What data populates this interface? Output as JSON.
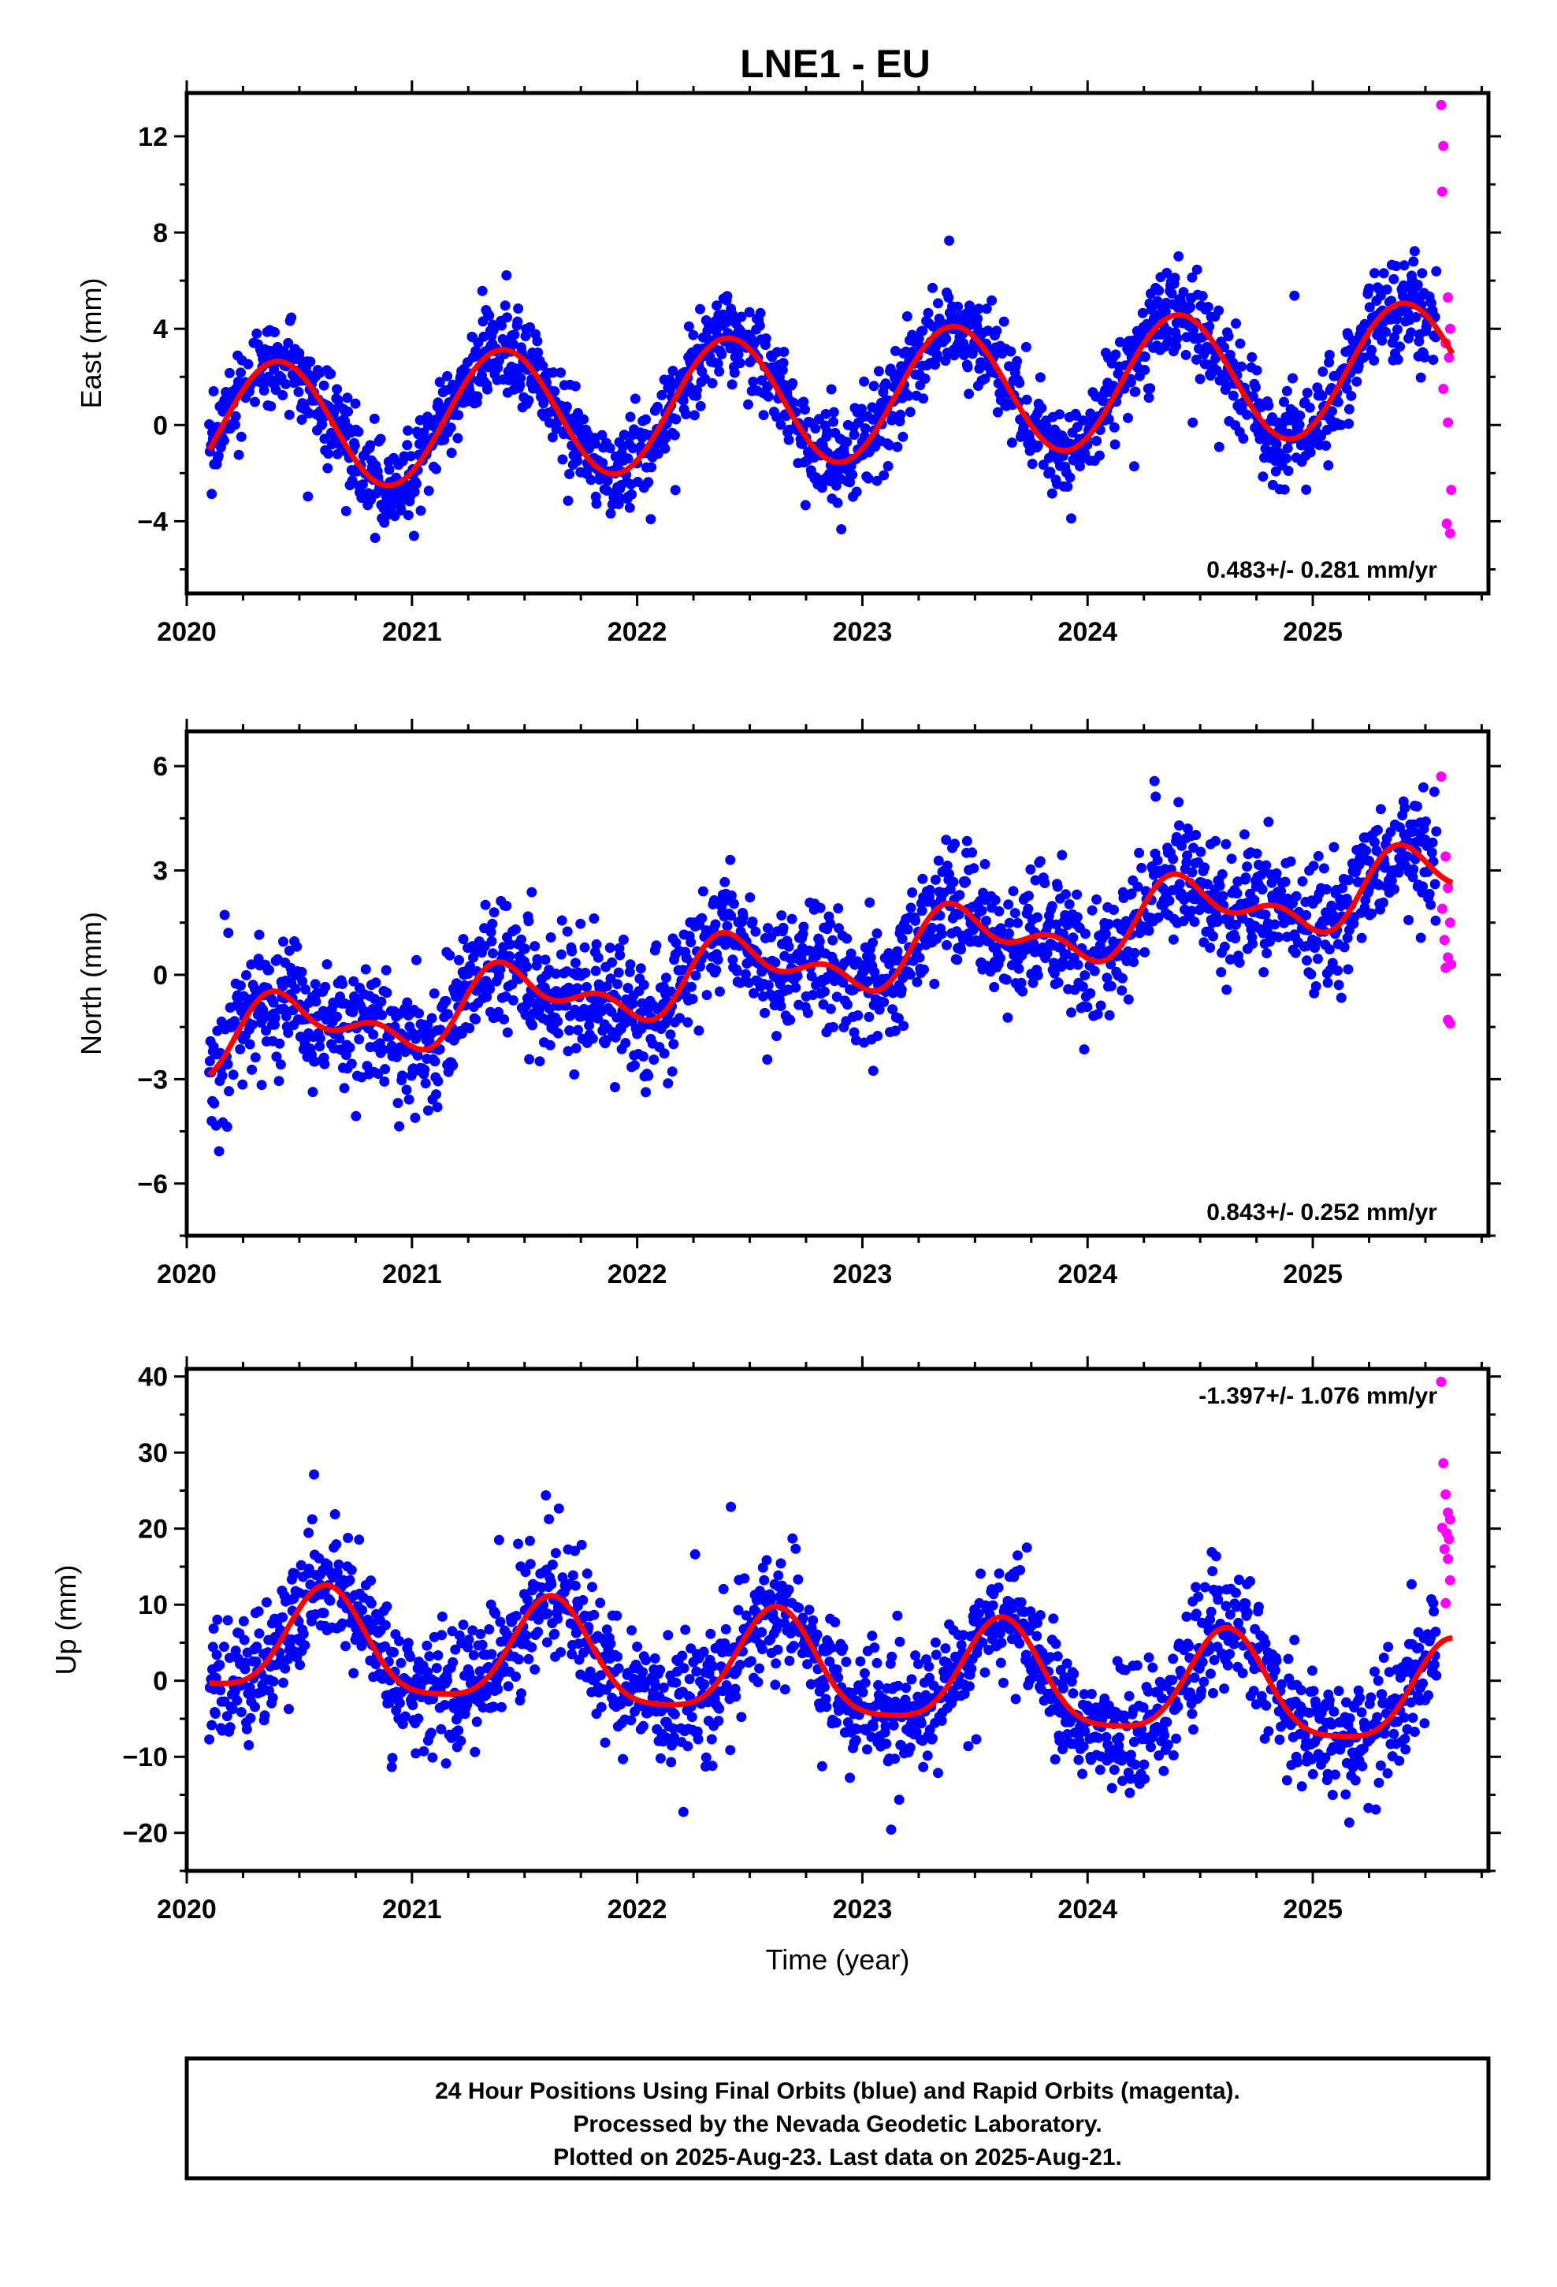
{
  "title": "LNE1 - EU",
  "colors": {
    "final": "#0000ff",
    "rapid": "#ff00ff",
    "fit": "#ff0000",
    "frame": "#000000"
  },
  "footer": {
    "line1": "24 Hour Positions Using Final Orbits (blue) and Rapid Orbits (magenta).",
    "line2": "Processed by the Nevada Geodetic Laboratory.",
    "line3": "Plotted on 2025-Aug-23. Last data on 2025-Aug-21."
  },
  "chart_data": [
    {
      "type": "scatter",
      "ylabel": "East (mm)",
      "xlabel": "",
      "xlim": [
        2020.0,
        2025.78
      ],
      "ylim": [
        -7,
        13.8
      ],
      "xticks": [
        2020,
        2021,
        2022,
        2023,
        2024,
        2025
      ],
      "xtick_labels": [
        "2020",
        "2021",
        "2022",
        "2023",
        "2024",
        "2025"
      ],
      "yticks": [
        -4,
        0,
        4,
        8,
        12
      ],
      "ytick_labels": [
        "−4",
        "0",
        "4",
        "8",
        "12"
      ],
      "rate_label": "0.483+/- 0.281 mm/yr",
      "model": {
        "x0": 2020.1,
        "x1": 2025.62,
        "intercept": -0.2,
        "slope": 0.483,
        "annual": [
          {
            "a": 2.7,
            "peak": 2020.4
          }
        ],
        "semiannual": []
      },
      "scatter_sd": 1.0,
      "first_year": 2020.1,
      "last_final": 2025.55,
      "rapid": [
        [
          2025.57,
          13.3
        ],
        [
          2025.58,
          11.6
        ],
        [
          2025.575,
          9.7
        ],
        [
          2025.6,
          5.3
        ],
        [
          2025.61,
          4.0
        ],
        [
          2025.59,
          3.4
        ],
        [
          2025.605,
          2.8
        ],
        [
          2025.58,
          1.5
        ],
        [
          2025.6,
          0.1
        ],
        [
          2025.615,
          -2.7
        ],
        [
          2025.595,
          -4.1
        ],
        [
          2025.61,
          -4.5
        ]
      ]
    },
    {
      "type": "scatter",
      "ylabel": "North (mm)",
      "xlabel": "",
      "xlim": [
        2020.0,
        2025.78
      ],
      "ylim": [
        -7.5,
        7
      ],
      "xticks": [
        2020,
        2021,
        2022,
        2023,
        2024,
        2025
      ],
      "xtick_labels": [
        "2020",
        "2021",
        "2022",
        "2023",
        "2024",
        "2025"
      ],
      "yticks": [
        -6,
        -3,
        0,
        3,
        6
      ],
      "ytick_labels": [
        "−6",
        "−3",
        "0",
        "3",
        "6"
      ],
      "rate_label": "0.843+/- 0.252 mm/yr",
      "model": {
        "x0": 2020.1,
        "x1": 2025.62,
        "intercept": -1.9,
        "slope": 0.843,
        "annual": [
          {
            "a": 0.8,
            "peak": 2020.45
          }
        ],
        "semiannual": [
          {
            "a": 0.5,
            "peak": 2020.35
          }
        ]
      },
      "scatter_sd": 0.9,
      "first_year": 2020.1,
      "last_final": 2025.55,
      "rapid": [
        [
          2025.57,
          5.7
        ],
        [
          2025.59,
          3.4
        ],
        [
          2025.6,
          2.5
        ],
        [
          2025.575,
          1.9
        ],
        [
          2025.61,
          1.5
        ],
        [
          2025.585,
          1.0
        ],
        [
          2025.6,
          0.5
        ],
        [
          2025.615,
          0.3
        ],
        [
          2025.59,
          0.2
        ],
        [
          2025.6,
          -1.3
        ],
        [
          2025.61,
          -1.4
        ]
      ]
    },
    {
      "type": "scatter",
      "ylabel": "Up (mm)",
      "xlabel": "Time (year)",
      "xlim": [
        2020.0,
        2025.78
      ],
      "ylim": [
        -25,
        41
      ],
      "xticks": [
        2020,
        2021,
        2022,
        2023,
        2024,
        2025
      ],
      "xtick_labels": [
        "2020",
        "2021",
        "2022",
        "2023",
        "2024",
        "2025"
      ],
      "yticks": [
        -20,
        -10,
        0,
        10,
        20,
        30,
        40
      ],
      "ytick_labels": [
        "−20",
        "−10",
        "0",
        "10",
        "20",
        "30",
        "40"
      ],
      "rate_label": "-1.397+/- 1.076 mm/yr",
      "model": {
        "x0": 2020.1,
        "x1": 2025.62,
        "intercept": 5.0,
        "slope": -1.397,
        "annual": [
          {
            "a": 6.8,
            "peak": 2020.62
          }
        ],
        "semiannual": [
          {
            "a": 1.5,
            "peak": 2020.62
          }
        ]
      },
      "scatter_sd": 4.0,
      "first_year": 2020.1,
      "last_final": 2025.55,
      "rapid": [
        [
          2025.57,
          39.3
        ],
        [
          2025.58,
          28.6
        ],
        [
          2025.59,
          24.5
        ],
        [
          2025.6,
          22.1
        ],
        [
          2025.61,
          21.2
        ],
        [
          2025.575,
          20.1
        ],
        [
          2025.595,
          19.4
        ],
        [
          2025.605,
          18.6
        ],
        [
          2025.585,
          17.3
        ],
        [
          2025.6,
          16.0
        ],
        [
          2025.61,
          13.2
        ],
        [
          2025.59,
          10.2
        ]
      ]
    }
  ]
}
